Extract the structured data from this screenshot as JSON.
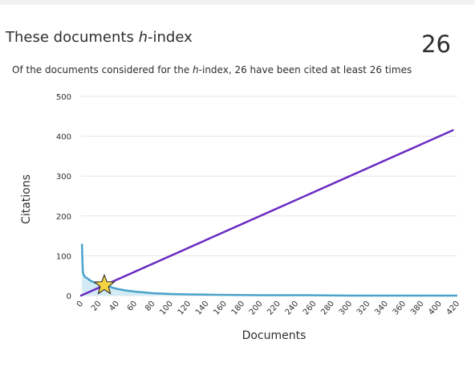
{
  "header": {
    "title_prefix": "These documents ",
    "title_h": "h",
    "title_suffix": "-index",
    "h_index_value": "26"
  },
  "subtitle": {
    "prefix": "Of the documents considered for the ",
    "h": "h",
    "suffix": "-index, 26 have been cited at least 26 times"
  },
  "colors": {
    "citations_line": "#4aa3c9",
    "citations_fill": "#d3ebf5",
    "diagonal_line": "#6a2bc0",
    "star_fill": "#f5d442",
    "star_stroke": "#3a3a3a",
    "grid": "#e6e6e6"
  },
  "chart_data": {
    "type": "area",
    "xlabel": "Documents",
    "ylabel": "Citations",
    "xlim": [
      0,
      420
    ],
    "ylim": [
      0,
      500
    ],
    "x_ticks": [
      0,
      20,
      40,
      60,
      80,
      100,
      120,
      140,
      160,
      180,
      200,
      220,
      240,
      260,
      280,
      300,
      320,
      340,
      360,
      380,
      400,
      420
    ],
    "y_ticks": [
      0,
      100,
      200,
      300,
      400,
      500
    ],
    "grid": true,
    "series": [
      {
        "kind": "citations_per_document",
        "x": [
          1,
          2,
          3,
          5,
          8,
          10,
          13,
          16,
          20,
          24,
          26,
          30,
          35,
          40,
          50,
          60,
          70,
          80,
          100,
          120,
          150,
          200,
          250,
          300,
          350,
          400,
          420
        ],
        "y": [
          130,
          60,
          52,
          46,
          42,
          38,
          35,
          32,
          30,
          28,
          26,
          24,
          20,
          17,
          13,
          10,
          8,
          6,
          4,
          3,
          2,
          1,
          1,
          0,
          0,
          0,
          0
        ]
      },
      {
        "kind": "diagonal_y_equals_x",
        "x": [
          0,
          415
        ],
        "y": [
          0,
          415
        ]
      }
    ],
    "h_index_marker": {
      "x": 26,
      "y": 26
    }
  }
}
